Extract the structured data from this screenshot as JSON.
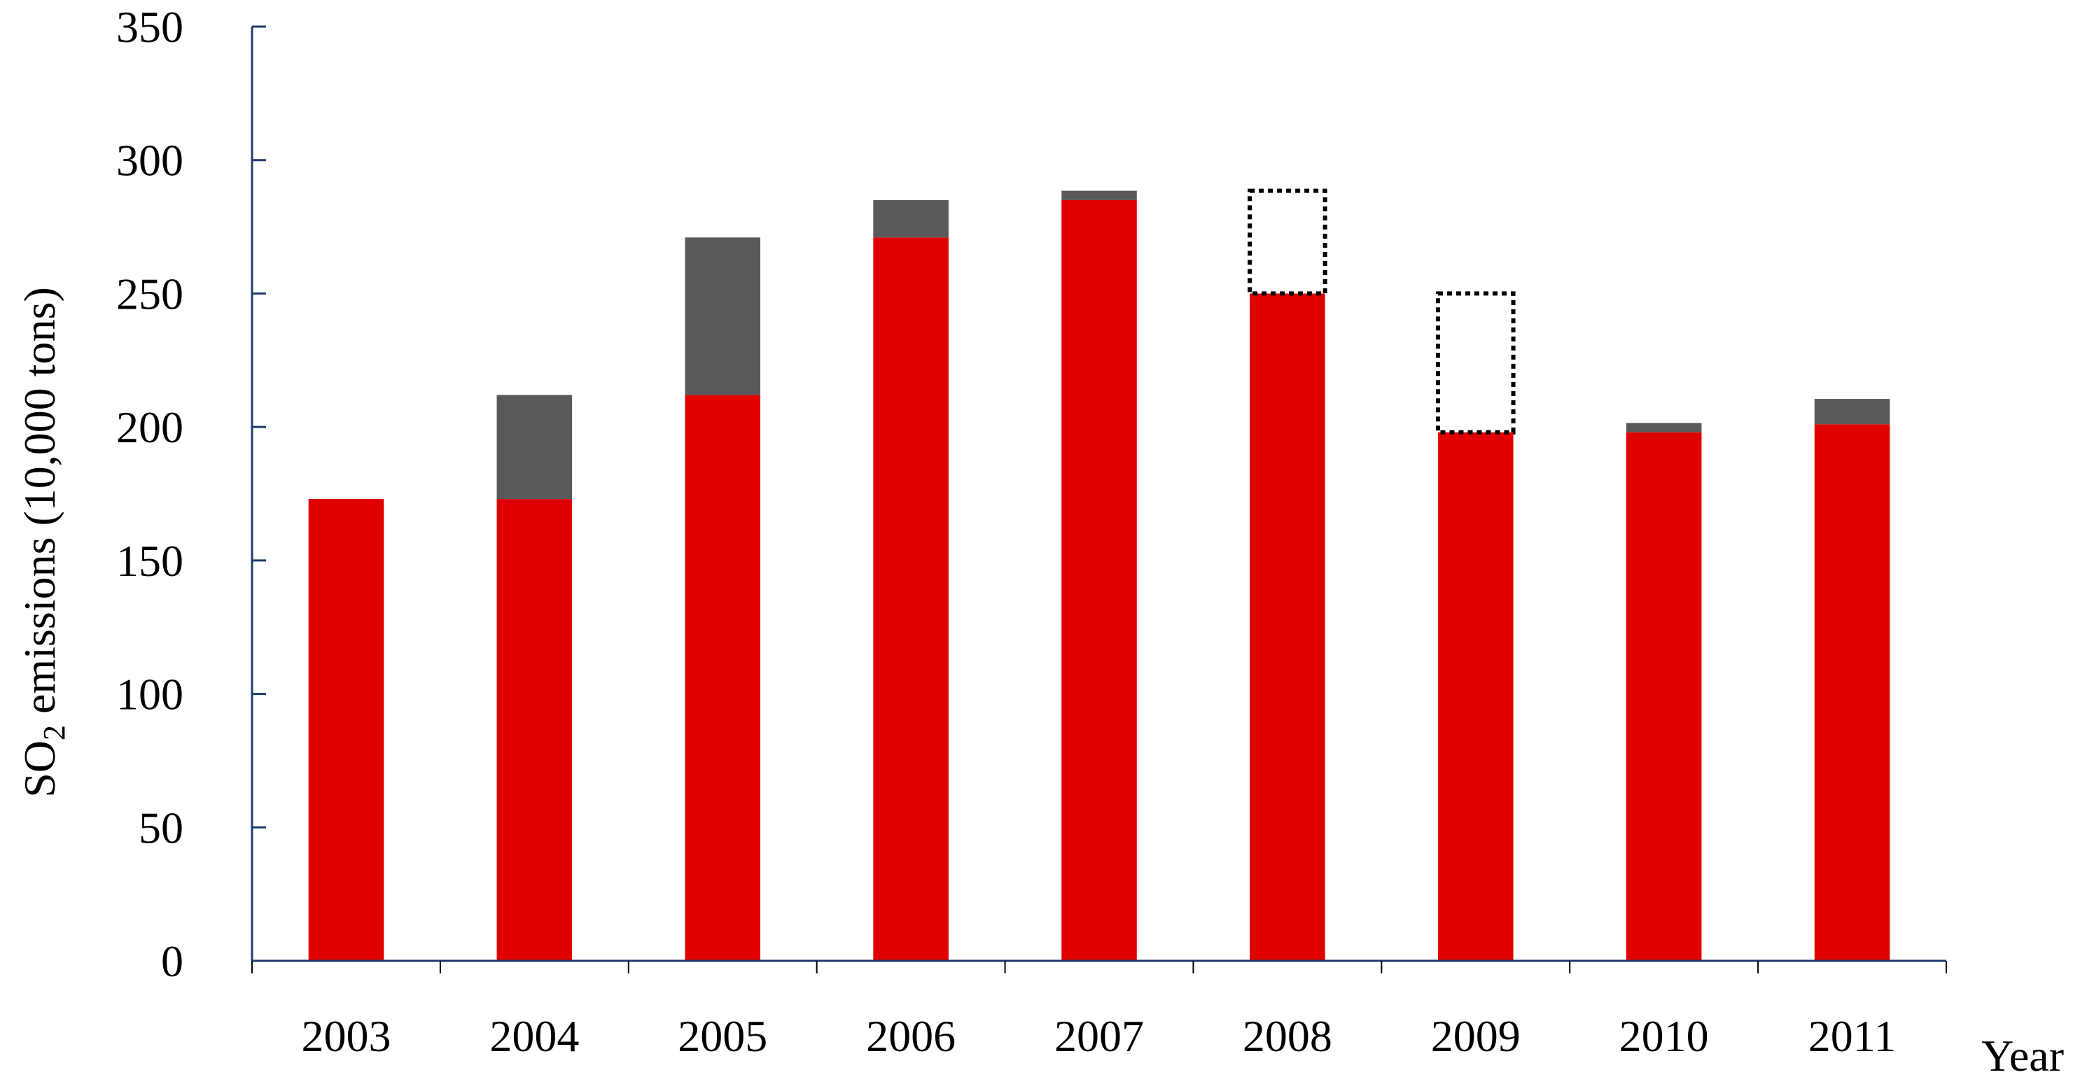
{
  "chart_data": {
    "type": "bar",
    "stacked": true,
    "title": "",
    "ylabel": "SO",
    "ylabel_subscript": "2",
    "ylabel_rest": " emissions (10,000 tons)",
    "xlabel": "Year",
    "ylim": [
      0,
      350
    ],
    "yticks": [
      0,
      50,
      100,
      150,
      200,
      250,
      300,
      350
    ],
    "categories": [
      "2003",
      "2004",
      "2005",
      "2006",
      "2007",
      "2008",
      "2009",
      "2010",
      "2011"
    ],
    "series": [
      {
        "color": "#e00000",
        "values": [
          173,
          173,
          212,
          271,
          285,
          250,
          198,
          198,
          201
        ]
      },
      {
        "color": "#595959",
        "values": [
          0,
          39,
          59,
          14,
          3.5,
          0,
          0,
          3.5,
          9.5
        ]
      }
    ],
    "dotted_boxes": [
      {
        "category": "2008",
        "from": 250,
        "to": 288.5
      },
      {
        "category": "2009",
        "from": 198,
        "to": 250
      }
    ],
    "grid": false,
    "legend": "none"
  }
}
